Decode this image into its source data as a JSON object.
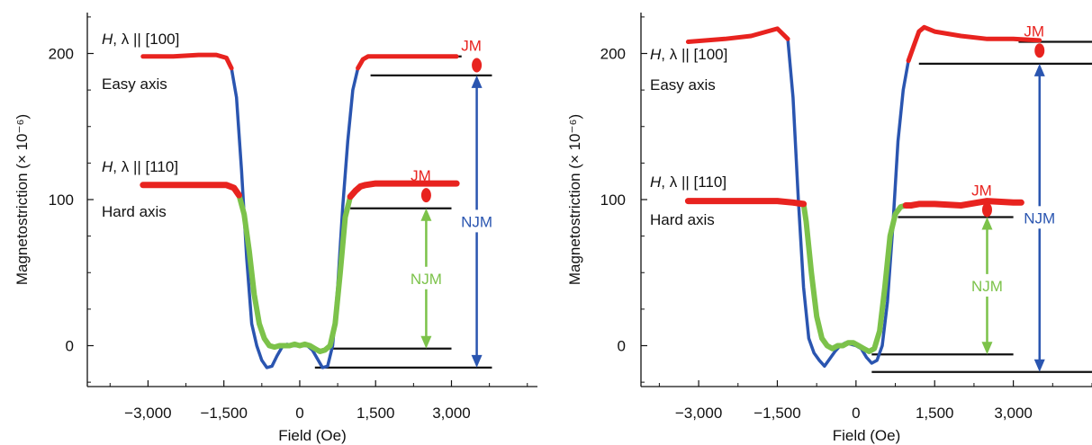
{
  "colors": {
    "red": "#e8231f",
    "blue": "#2a55b0",
    "green": "#7cc24a",
    "black": "#111111"
  },
  "chart_data": [
    {
      "type": "line",
      "panel": "left",
      "xlabel": "Field (Oe)",
      "ylabel": "Magnetostriction (× 10⁻⁶)",
      "xlim": [
        -4200,
        4700
      ],
      "ylim": [
        -28,
        228
      ],
      "xticks": [
        -3000,
        -1500,
        0,
        1500,
        3000
      ],
      "xtick_labels": [
        "−3,000",
        "−1,500",
        "0",
        "1,500",
        "3,000"
      ],
      "yticks": [
        0,
        100,
        200
      ],
      "ytick_labels": [
        "0",
        "100",
        "200"
      ],
      "annotations": [
        {
          "text_pre": "H",
          "text_mid": ", λ",
          "text_post": " || [100]",
          "sub": "Easy axis"
        },
        {
          "text_pre": "H",
          "text_mid": ", λ",
          "text_post": " || [110]",
          "sub": "Hard axis"
        }
      ],
      "jm_labels": [
        "JM",
        "JM"
      ],
      "njm_labels": [
        "NJM",
        "NJM"
      ],
      "series": [
        {
          "color_key": "blue",
          "outer_color_key": "red",
          "x": [
            -3100,
            -2500,
            -2000,
            -1650,
            -1450,
            -1350,
            -1250,
            -1150,
            -1050,
            -950,
            -850,
            -750,
            -650,
            -550,
            -450,
            -350,
            -250,
            -150,
            -50,
            0,
            50,
            150,
            250,
            350,
            450,
            550,
            650,
            750,
            850,
            950,
            1050,
            1150,
            1250,
            1350,
            1450,
            1700,
            2200,
            2700,
            3100
          ],
          "y": [
            198,
            198,
            199,
            199,
            197,
            190,
            170,
            120,
            60,
            15,
            0,
            -10,
            -15,
            -14,
            -7,
            -1,
            1,
            0,
            0,
            0,
            0,
            0,
            -3,
            -9,
            -15,
            -14,
            0,
            40,
            95,
            140,
            175,
            190,
            196,
            198,
            198,
            198,
            198,
            198,
            198
          ]
        },
        {
          "color_key": "green",
          "outer_color_key": "red",
          "x": [
            -3100,
            -2500,
            -2000,
            -1650,
            -1450,
            -1300,
            -1200,
            -1100,
            -1000,
            -900,
            -800,
            -700,
            -600,
            -500,
            -400,
            -300,
            -200,
            -100,
            0,
            100,
            200,
            300,
            400,
            500,
            600,
            700,
            800,
            900,
            1000,
            1100,
            1200,
            1300,
            1500,
            2000,
            2500,
            3000,
            3100
          ],
          "y": [
            110,
            110,
            110,
            110,
            110,
            108,
            103,
            90,
            65,
            35,
            15,
            5,
            0,
            -1,
            0,
            0,
            0,
            1,
            0,
            1,
            0,
            -2,
            -4,
            -3,
            0,
            15,
            50,
            88,
            102,
            106,
            109,
            110,
            111,
            111,
            111,
            111,
            111
          ]
        }
      ],
      "reference_levels": [
        {
          "y": 198,
          "x_range": [
            2200,
            3200
          ]
        },
        {
          "y": 185,
          "x_range": [
            1400,
            3800
          ]
        },
        {
          "y": -2,
          "x_range": [
            600,
            3000
          ]
        },
        {
          "y": 94,
          "x_range": [
            1000,
            3000
          ]
        },
        {
          "y": -15,
          "x_range": [
            300,
            3800
          ]
        }
      ],
      "jm_points": [
        {
          "x": 3500,
          "y": 192
        },
        {
          "x": 2500,
          "y": 103
        }
      ],
      "njm_arrows": [
        {
          "x": 3500,
          "y_top": 185,
          "y_bottom": -15,
          "color_key": "blue"
        },
        {
          "x": 2500,
          "y_top": 94,
          "y_bottom": -2,
          "color_key": "green"
        }
      ]
    },
    {
      "type": "line",
      "panel": "right",
      "xlabel": "Field (Oe)",
      "ylabel": "Magnetostriction (× 10⁻⁶)",
      "xlim": [
        -4100,
        4500
      ],
      "ylim": [
        -28,
        228
      ],
      "xticks": [
        -3000,
        -1500,
        0,
        1500,
        3000
      ],
      "xtick_labels": [
        "−3,000",
        "−1,500",
        "0",
        "1,500",
        "3,000"
      ],
      "yticks": [
        0,
        100,
        200
      ],
      "ytick_labels": [
        "0",
        "100",
        "200"
      ],
      "annotations": [
        {
          "text_pre": "H",
          "text_mid": ", λ",
          "text_post": " || [100]",
          "sub": "Easy axis"
        },
        {
          "text_pre": "H",
          "text_mid": ", λ",
          "text_post": " || [110]",
          "sub": "Hard axis"
        }
      ],
      "jm_labels": [
        "JM",
        "JM"
      ],
      "njm_labels": [
        "NJM",
        "NJM"
      ],
      "series": [
        {
          "color_key": "blue",
          "outer_color_key": "red",
          "x": [
            -3200,
            -2500,
            -2000,
            -1500,
            -1300,
            -1200,
            -1100,
            -1000,
            -900,
            -800,
            -700,
            -600,
            -500,
            -400,
            -300,
            -200,
            -100,
            0,
            100,
            200,
            300,
            400,
            500,
            600,
            700,
            800,
            900,
            1000,
            1100,
            1200,
            1300,
            1500,
            2000,
            2500,
            3000,
            3500
          ],
          "y": [
            208,
            210,
            212,
            217,
            210,
            170,
            100,
            40,
            5,
            -5,
            -10,
            -14,
            -9,
            -4,
            0,
            2,
            1,
            0,
            -2,
            -8,
            -12,
            -10,
            0,
            30,
            80,
            140,
            175,
            195,
            205,
            215,
            218,
            215,
            212,
            210,
            210,
            209
          ],
          "outer_threshold": 195
        },
        {
          "color_key": "green",
          "outer_color_key": "red",
          "x": [
            -3200,
            -2500,
            -2000,
            -1500,
            -1200,
            -1000,
            -950,
            -850,
            -750,
            -650,
            -550,
            -450,
            -350,
            -250,
            -150,
            -50,
            50,
            150,
            250,
            350,
            450,
            550,
            650,
            750,
            850,
            950,
            1050,
            1200,
            1500,
            2000,
            2500,
            3000,
            3150
          ],
          "y": [
            99,
            99,
            99,
            99,
            98,
            97,
            85,
            50,
            20,
            5,
            0,
            -2,
            0,
            0,
            2,
            2,
            0,
            -2,
            -4,
            -2,
            10,
            40,
            75,
            90,
            95,
            96,
            96,
            97,
            97,
            96,
            99,
            98,
            98
          ]
        }
      ],
      "reference_levels": [
        {
          "y": 208,
          "x_range": [
            3100,
            4500
          ]
        },
        {
          "y": 193,
          "x_range": [
            1200,
            4500
          ]
        },
        {
          "y": -6,
          "x_range": [
            300,
            3000
          ]
        },
        {
          "y": 88,
          "x_range": [
            800,
            3000
          ]
        },
        {
          "y": -18,
          "x_range": [
            300,
            4500
          ]
        }
      ],
      "jm_points": [
        {
          "x": 3500,
          "y": 202
        },
        {
          "x": 2500,
          "y": 93
        }
      ],
      "njm_arrows": [
        {
          "x": 3500,
          "y_top": 193,
          "y_bottom": -18,
          "color_key": "blue"
        },
        {
          "x": 2500,
          "y_top": 88,
          "y_bottom": -6,
          "color_key": "green"
        }
      ]
    }
  ]
}
